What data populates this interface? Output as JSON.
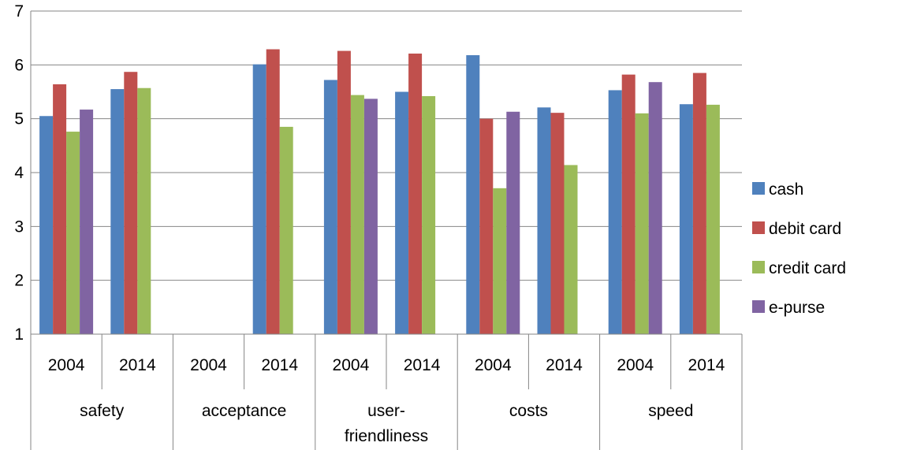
{
  "chart_data": {
    "type": "bar",
    "groups": [
      {
        "label": "safety",
        "years": [
          "2004",
          "2014"
        ]
      },
      {
        "label": "acceptance",
        "years": [
          "2004",
          "2014"
        ]
      },
      {
        "label": "user-\nfriendliness",
        "years": [
          "2004",
          "2014"
        ]
      },
      {
        "label": "costs",
        "years": [
          "2004",
          "2014"
        ]
      },
      {
        "label": "speed",
        "years": [
          "2004",
          "2014"
        ]
      }
    ],
    "categories": [
      "safety 2004",
      "safety 2014",
      "acceptance 2004",
      "acceptance 2014",
      "user-friendliness 2004",
      "user-friendliness 2014",
      "costs 2004",
      "costs 2014",
      "speed 2004",
      "speed 2014"
    ],
    "series": [
      {
        "name": "cash",
        "color": "#4F81BD",
        "values": [
          5.05,
          5.55,
          null,
          6.01,
          5.72,
          5.5,
          6.18,
          5.21,
          5.53,
          5.27
        ]
      },
      {
        "name": "debit card",
        "color": "#C0504D",
        "values": [
          5.64,
          5.87,
          null,
          6.29,
          6.26,
          6.21,
          5.0,
          5.11,
          5.82,
          5.85
        ]
      },
      {
        "name": "credit card",
        "color": "#9BBB59",
        "values": [
          4.76,
          5.57,
          null,
          4.85,
          5.44,
          5.42,
          3.71,
          4.14,
          5.1,
          5.26
        ]
      },
      {
        "name": "e-purse",
        "color": "#8064A2",
        "values": [
          5.17,
          null,
          null,
          null,
          5.37,
          null,
          5.13,
          null,
          5.68,
          null
        ]
      }
    ],
    "yticks": [
      1,
      2,
      3,
      4,
      5,
      6,
      7
    ],
    "ylim": [
      1,
      7
    ],
    "grid": true,
    "legend_position": "right"
  }
}
